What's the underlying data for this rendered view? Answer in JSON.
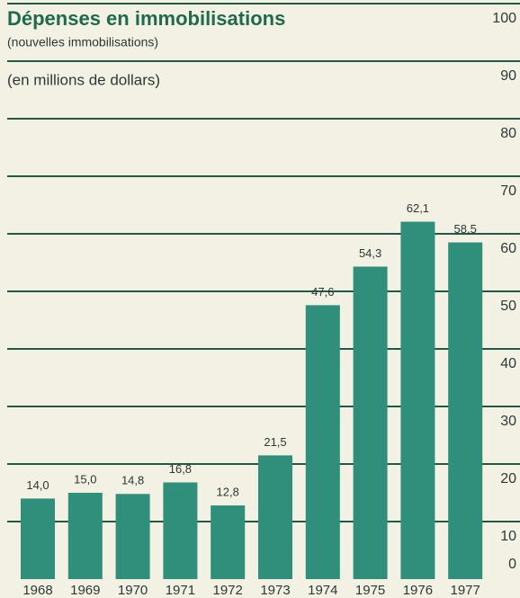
{
  "chart_data": {
    "type": "bar",
    "title": "Dépenses en immobilisations",
    "subtitle": "(nouvelles immobilisations)",
    "unit_label": "(en millions de dollars)",
    "categories": [
      "1968",
      "1969",
      "1970",
      "1971",
      "1972",
      "1973",
      "1974",
      "1975",
      "1976",
      "1977"
    ],
    "values": [
      14.0,
      15.0,
      14.8,
      16.8,
      12.8,
      21.5,
      47.6,
      54.3,
      62.1,
      58.5
    ],
    "value_labels": [
      "14,0",
      "15,0",
      "14,8",
      "16,8",
      "12,8",
      "21,5",
      "47,6",
      "54,3",
      "62,1",
      "58,5"
    ],
    "color": "#2f8f7b",
    "ylim": [
      0,
      100
    ],
    "yticks": [
      0,
      10,
      20,
      30,
      40,
      50,
      60,
      70,
      80,
      90,
      100
    ],
    "grid": true
  }
}
